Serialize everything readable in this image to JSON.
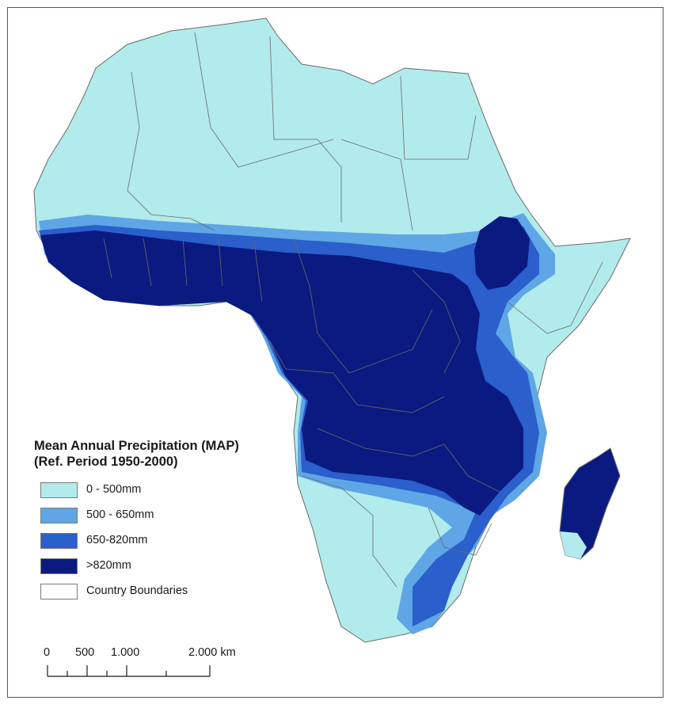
{
  "legend": {
    "title_line1": "Mean Annual Precipitation (MAP)",
    "title_line2": "(Ref. Period 1950-2000)",
    "items": [
      {
        "label": "0 - 500mm",
        "color": "#b2ebec"
      },
      {
        "label": "500 - 650mm",
        "color": "#5ea6e5"
      },
      {
        "label": "650-820mm",
        "color": "#2a5fcc"
      },
      {
        "label": ">820mm",
        "color": "#0a1a80"
      },
      {
        "label": "Country Boundaries",
        "color": "#ffffff"
      }
    ]
  },
  "scale": {
    "ticks": [
      "0",
      "500",
      "1.000",
      "2.000 km"
    ]
  },
  "colors": {
    "land_dry": "#b2ebec",
    "band_500": "#5ea6e5",
    "band_650": "#2a5fcc",
    "band_820": "#0a1a80",
    "boundary": "#6a6a6a"
  }
}
